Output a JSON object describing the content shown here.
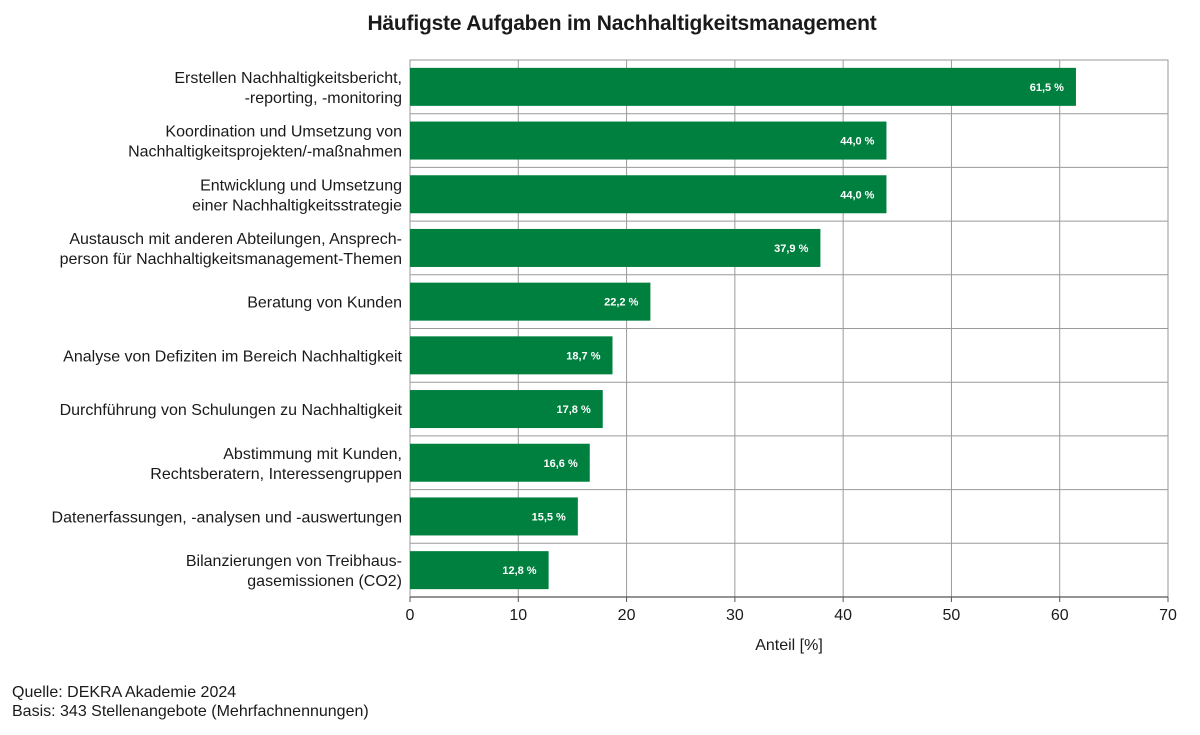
{
  "chart_data": {
    "type": "bar",
    "orientation": "horizontal",
    "title": "Häufigste Aufgaben im Nachhaltigkeitsmanagement",
    "xlabel": "Anteil [%]",
    "ylabel": "",
    "xlim": [
      0,
      70
    ],
    "xticks": [
      0,
      10,
      20,
      30,
      40,
      50,
      60,
      70
    ],
    "grid": true,
    "bar_color": "#00803F",
    "categories": [
      [
        "Erstellen Nachhaltigkeitsbericht,",
        "-reporting, -monitoring"
      ],
      [
        "Koordination und Umsetzung von",
        "Nachhaltigkeitsprojekten/-maßnahmen"
      ],
      [
        "Entwicklung und Umsetzung",
        "einer Nachhaltigkeitsstrategie"
      ],
      [
        "Austausch mit anderen Abteilungen, Ansprech-",
        "person für Nachhaltigkeitsmanagement-Themen"
      ],
      [
        "Beratung von Kunden"
      ],
      [
        "Analyse von Defiziten im Bereich Nachhaltigkeit"
      ],
      [
        "Durchführung von Schulungen zu Nachhaltigkeit"
      ],
      [
        "Abstimmung mit Kunden,",
        "Rechtsberatern, Interessengruppen"
      ],
      [
        "Datenerfassungen, -analysen und -auswertungen"
      ],
      [
        "Bilanzierungen von Treibhaus-",
        "gasemissionen (CO2)"
      ]
    ],
    "values": [
      61.5,
      44.0,
      44.0,
      37.9,
      22.2,
      18.7,
      17.8,
      16.6,
      15.5,
      12.8
    ],
    "value_labels": [
      "61,5 %",
      "44,0 %",
      "44,0 %",
      "37,9 %",
      "22,2 %",
      "18,7 %",
      "17,8 %",
      "16,6 %",
      "15,5 %",
      "12,8 %"
    ]
  },
  "footer": {
    "source": "Quelle: DEKRA Akademie 2024",
    "basis": "Basis: 343 Stellenangebote (Mehrfachnennungen)"
  }
}
